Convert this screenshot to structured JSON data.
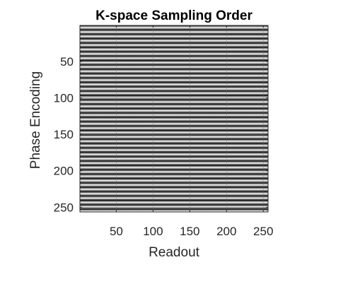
{
  "chart_data": {
    "type": "heatmap",
    "title": "K-space Sampling Order",
    "xlabel": "Readout",
    "ylabel": "Phase Encoding",
    "xlim": [
      0.5,
      256.5
    ],
    "ylim": [
      0.5,
      256.5
    ],
    "y_direction": "reverse",
    "x_ticks": [
      50,
      100,
      150,
      200,
      250
    ],
    "y_ticks": [
      50,
      100,
      150,
      200,
      250
    ],
    "grid": true,
    "colormap": "gray",
    "matrix_size": [
      256,
      256
    ],
    "pattern": "each phase-encoding line shown as a horizontal gradient band; value varies along phase encoding and is constant along readout",
    "band_period_rows": 6,
    "colors": {
      "band_dark": "#000000",
      "band_light": "#ffffff",
      "axis": "#262626",
      "grid": "#6a6a6a"
    }
  }
}
